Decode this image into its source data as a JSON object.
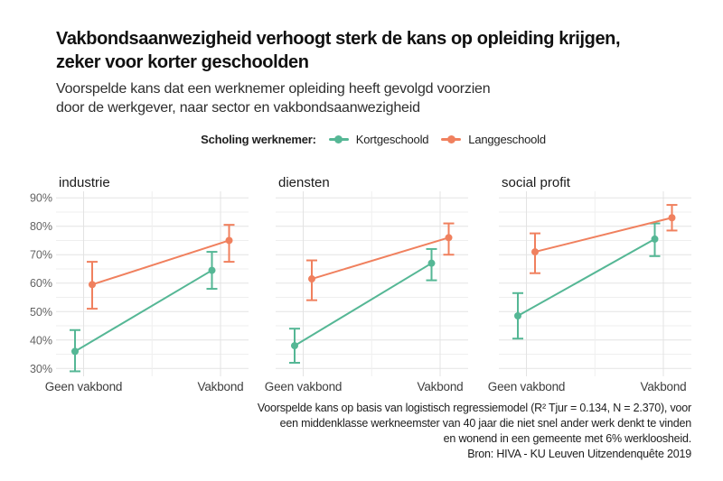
{
  "header": {
    "title_lines": [
      "Vakbondsaanwezigheid verhoogt sterk de kans op opleiding krijgen,",
      "zeker voor korter geschoolden"
    ],
    "subtitle_lines": [
      "Voorspelde kans dat een werknemer opleiding heeft gevolgd voorzien",
      "door de werkgever, naar sector en vakbondsaanwezigheid"
    ]
  },
  "legend": {
    "title": "Scholing werknemer:"
  },
  "chart_data": {
    "type": "line",
    "subtype": "point-estimates-with-confidence-intervals",
    "units": "%",
    "categories": [
      "Geen vakbond",
      "Vakbond"
    ],
    "y_axis": {
      "ticks": [
        30,
        40,
        50,
        60,
        70,
        80,
        90
      ],
      "minor_ticks": [
        35,
        45,
        55,
        65,
        75,
        85
      ],
      "tick_suffix": "%",
      "range": [
        27,
        92.5
      ],
      "grid": true
    },
    "legend_position": "top-center",
    "series_meta": [
      {
        "name": "Kortgeschoold",
        "color": "#55b795"
      },
      {
        "name": "Langgeschoold",
        "color": "#f0805e"
      }
    ],
    "panels": [
      {
        "title": "industrie",
        "series": [
          {
            "name": "Kortgeschoold",
            "points": [
              {
                "category": "Geen vakbond",
                "value": 36,
                "ci_low": 29,
                "ci_high": 43.5
              },
              {
                "category": "Vakbond",
                "value": 64.5,
                "ci_low": 58,
                "ci_high": 71
              }
            ]
          },
          {
            "name": "Langgeschoold",
            "points": [
              {
                "category": "Geen vakbond",
                "value": 59.5,
                "ci_low": 51,
                "ci_high": 67.5
              },
              {
                "category": "Vakbond",
                "value": 75,
                "ci_low": 67.5,
                "ci_high": 80.5
              }
            ]
          }
        ]
      },
      {
        "title": "diensten",
        "series": [
          {
            "name": "Kortgeschoold",
            "points": [
              {
                "category": "Geen vakbond",
                "value": 38,
                "ci_low": 32,
                "ci_high": 44
              },
              {
                "category": "Vakbond",
                "value": 67,
                "ci_low": 61,
                "ci_high": 72
              }
            ]
          },
          {
            "name": "Langgeschoold",
            "points": [
              {
                "category": "Geen vakbond",
                "value": 61.5,
                "ci_low": 54,
                "ci_high": 68
              },
              {
                "category": "Vakbond",
                "value": 76,
                "ci_low": 70,
                "ci_high": 81
              }
            ]
          }
        ]
      },
      {
        "title": "social profit",
        "series": [
          {
            "name": "Kortgeschoold",
            "points": [
              {
                "category": "Geen vakbond",
                "value": 48.5,
                "ci_low": 40.5,
                "ci_high": 56.5
              },
              {
                "category": "Vakbond",
                "value": 75.5,
                "ci_low": 69.5,
                "ci_high": 81
              }
            ]
          },
          {
            "name": "Langgeschoold",
            "points": [
              {
                "category": "Geen vakbond",
                "value": 71,
                "ci_low": 63.5,
                "ci_high": 77.5
              },
              {
                "category": "Vakbond",
                "value": 83,
                "ci_low": 78.5,
                "ci_high": 87.5
              }
            ]
          }
        ]
      }
    ],
    "style": {
      "grid_major": "#e3e3e3",
      "grid_minor": "#efefef",
      "facet_title_color": "#1a1a1a",
      "axis_text_color": "#3d3d3d",
      "tick_text_color": "#636363"
    }
  },
  "caption": {
    "lines": [
      "Voorspelde kans op basis van logistisch regressiemodel (R² Tjur = 0.134, N = 2.370), voor",
      "een middenklasse werkneemster van 40 jaar die niet snel ander werk denkt te vinden",
      "en wonend in een gemeente met 6% werkloosheid.",
      "Bron: HIVA - KU Leuven Uitzendenquête 2019"
    ]
  }
}
